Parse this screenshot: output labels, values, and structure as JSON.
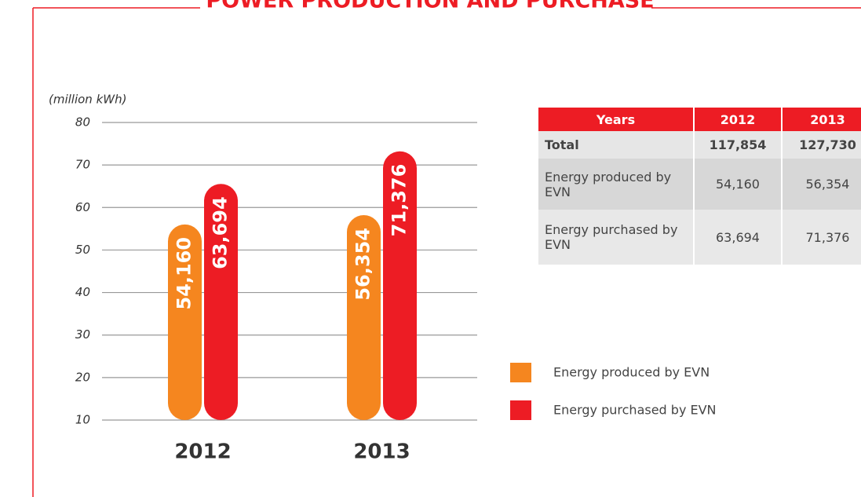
{
  "chart_data": {
    "type": "bar",
    "title": "POWER PRODUCTION AND PURCHASE",
    "y_label": "(million kWh)",
    "categories": [
      "2012",
      "2013"
    ],
    "series": [
      {
        "name": "Energy produced by EVN",
        "color": "#f5861f",
        "values": [
          54.16,
          56.354
        ],
        "value_labels": [
          "54,160",
          "56,354"
        ]
      },
      {
        "name": "Energy purchased by EVN",
        "color": "#ed1c24",
        "values": [
          63.694,
          71.376
        ],
        "value_labels": [
          "63,694",
          "71,376"
        ]
      }
    ],
    "ylim": [
      10,
      80
    ],
    "yticks": [
      10,
      20,
      30,
      40,
      50,
      60,
      70,
      80
    ],
    "grid": true
  },
  "table": {
    "header": [
      "Years",
      "2012",
      "2013"
    ],
    "rows": [
      [
        "Total",
        "117,854",
        "127,730"
      ],
      [
        "Energy produced by EVN",
        "54,160",
        "56,354"
      ],
      [
        "Energy purchased by EVN",
        "63,694",
        "71,376"
      ]
    ]
  }
}
